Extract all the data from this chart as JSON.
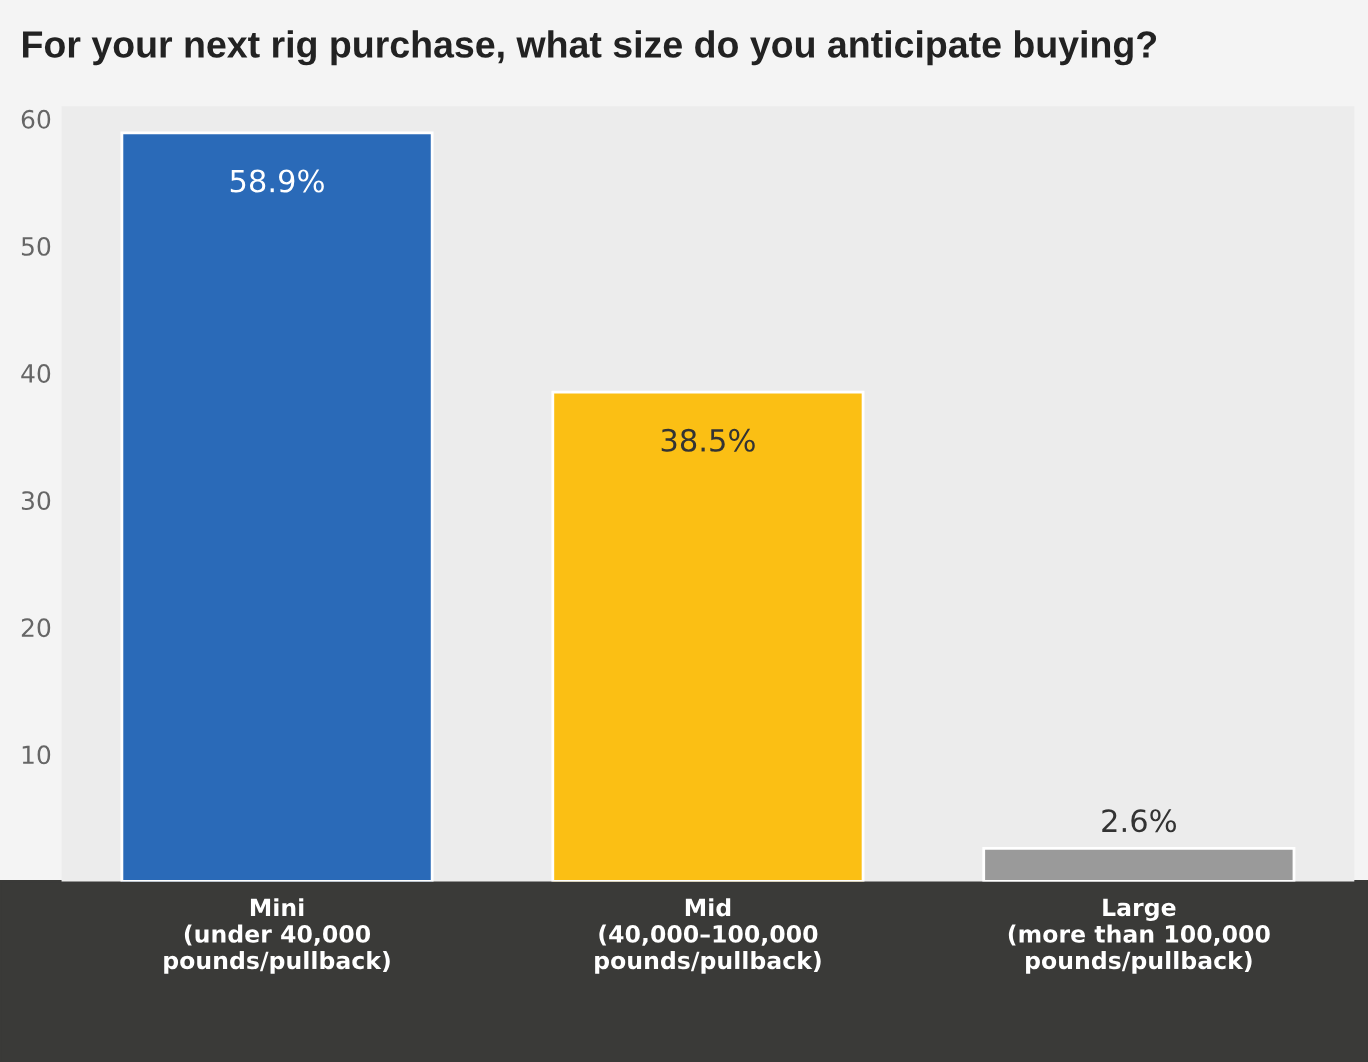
{
  "chart_data": {
    "type": "bar",
    "title": "For your next rig purchase, what size do you anticipate buying?",
    "categories": [
      "Mini\n(under 40,000\npounds/pullback)",
      "Mid\n(40,000–100,000\npounds/pullback)",
      "Large\n(more than 100,000\npounds/pullback)"
    ],
    "values": [
      58.9,
      38.5,
      2.6
    ],
    "value_labels": [
      "58.9%",
      "38.5%",
      "2.6%"
    ],
    "colors": [
      "#2a6ab8",
      "#fbbf14",
      "#9a9a9a"
    ],
    "ylim": [
      0,
      61
    ],
    "yticks": [
      10,
      20,
      30,
      40,
      50,
      60
    ],
    "grid": false
  }
}
